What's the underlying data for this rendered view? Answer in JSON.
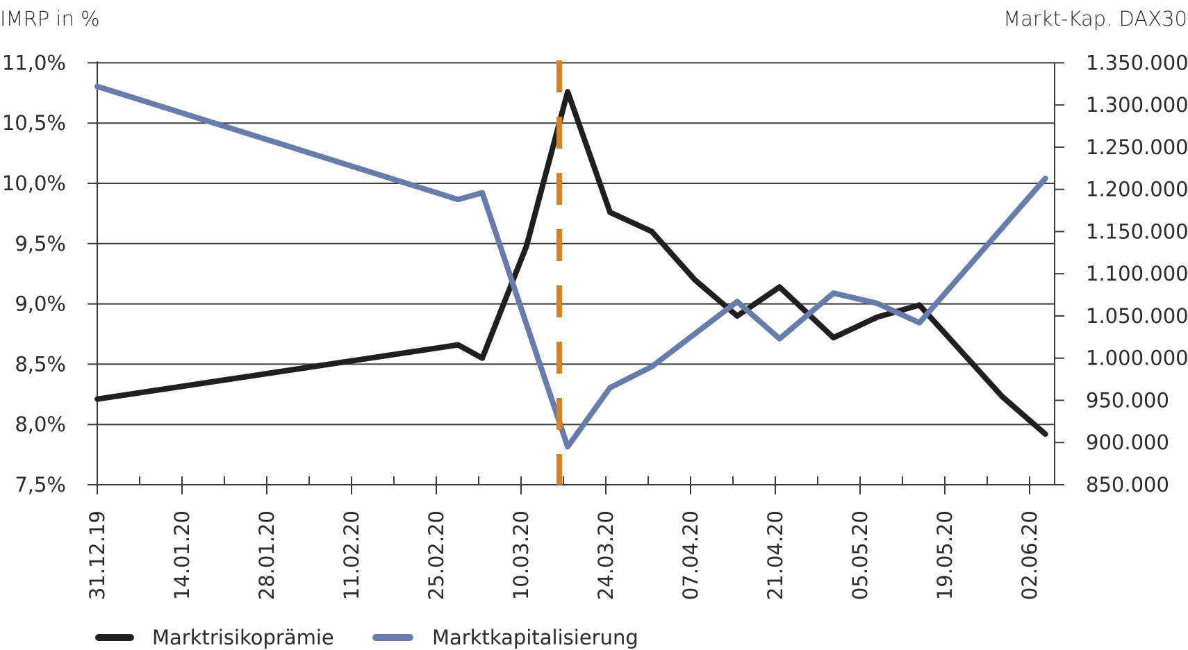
{
  "chart_data": {
    "type": "line",
    "title": "",
    "ylabel_left": "IMRP in %",
    "ylabel_right": "Markt-Kap. DAX30",
    "xlabel": "",
    "grid": true,
    "legend_position": "bottom-left",
    "ylim_left": [
      7.5,
      11.0
    ],
    "ylim_right": [
      850000,
      1350000
    ],
    "left_ticks": [
      "11,0%",
      "10,5%",
      "10,0%",
      "9,5%",
      "9,0%",
      "8,5%",
      "8,0%",
      "7,5%"
    ],
    "left_tick_values": [
      11.0,
      10.5,
      10.0,
      9.5,
      9.0,
      8.5,
      8.0,
      7.5
    ],
    "right_ticks": [
      "1.350.000",
      "1.300.000",
      "1.250.000",
      "1.200.000",
      "1.150.000",
      "1.100.000",
      "1.050.000",
      "1.000.000",
      "950.000",
      "900.000",
      "850.000"
    ],
    "right_tick_values": [
      1350000,
      1300000,
      1250000,
      1200000,
      1150000,
      1100000,
      1050000,
      1000000,
      950000,
      900000,
      850000
    ],
    "x_ticks": [
      "31.12.19",
      "14.01.20",
      "28.01.20",
      "11.02.20",
      "25.02.20",
      "10.03.20",
      "24.03.20",
      "07.04.20",
      "21.04.20",
      "05.05.20",
      "19.05.20",
      "02.06.20"
    ],
    "x_tick_days": [
      0,
      14,
      28,
      42,
      56,
      70,
      84,
      98,
      112,
      126,
      140,
      154
    ],
    "x_range_days": [
      0,
      158
    ],
    "marker_line": {
      "day": 77,
      "label": "",
      "color": "#d9801f",
      "style": "dashed"
    },
    "series": [
      {
        "name": "Marktrisikoprämie",
        "axis": "left",
        "color": "#1f1f1f",
        "days": [
          0,
          59.6,
          63.6,
          70.9,
          77.7,
          84.7,
          91.6,
          98.7,
          105.7,
          112.7,
          121.6,
          128.8,
          135.8,
          149.5,
          156.6
        ],
        "values": [
          8.21,
          8.66,
          8.55,
          9.48,
          10.76,
          9.76,
          9.6,
          9.2,
          8.9,
          9.14,
          8.72,
          8.89,
          8.99,
          8.23,
          7.92
        ]
      },
      {
        "name": "Marktkapitalisierung",
        "axis": "right",
        "color": "#687cac",
        "days": [
          0,
          59.6,
          63.6,
          77.7,
          84.7,
          91.6,
          105.7,
          112.7,
          121.6,
          128.8,
          135.8,
          156.6
        ],
        "values": [
          1322000,
          1188000,
          1196000,
          895000,
          965000,
          990000,
          1067000,
          1023000,
          1077000,
          1065000,
          1042000,
          1213000
        ]
      }
    ]
  },
  "legend": {
    "items": [
      {
        "label": "Marktrisikoprämie",
        "color": "#1f1f1f"
      },
      {
        "label": "Marktkapitalisierung",
        "color": "#687cac"
      }
    ]
  },
  "colors": {
    "grid": "#3a3a3a",
    "marker": "#d9801f"
  }
}
